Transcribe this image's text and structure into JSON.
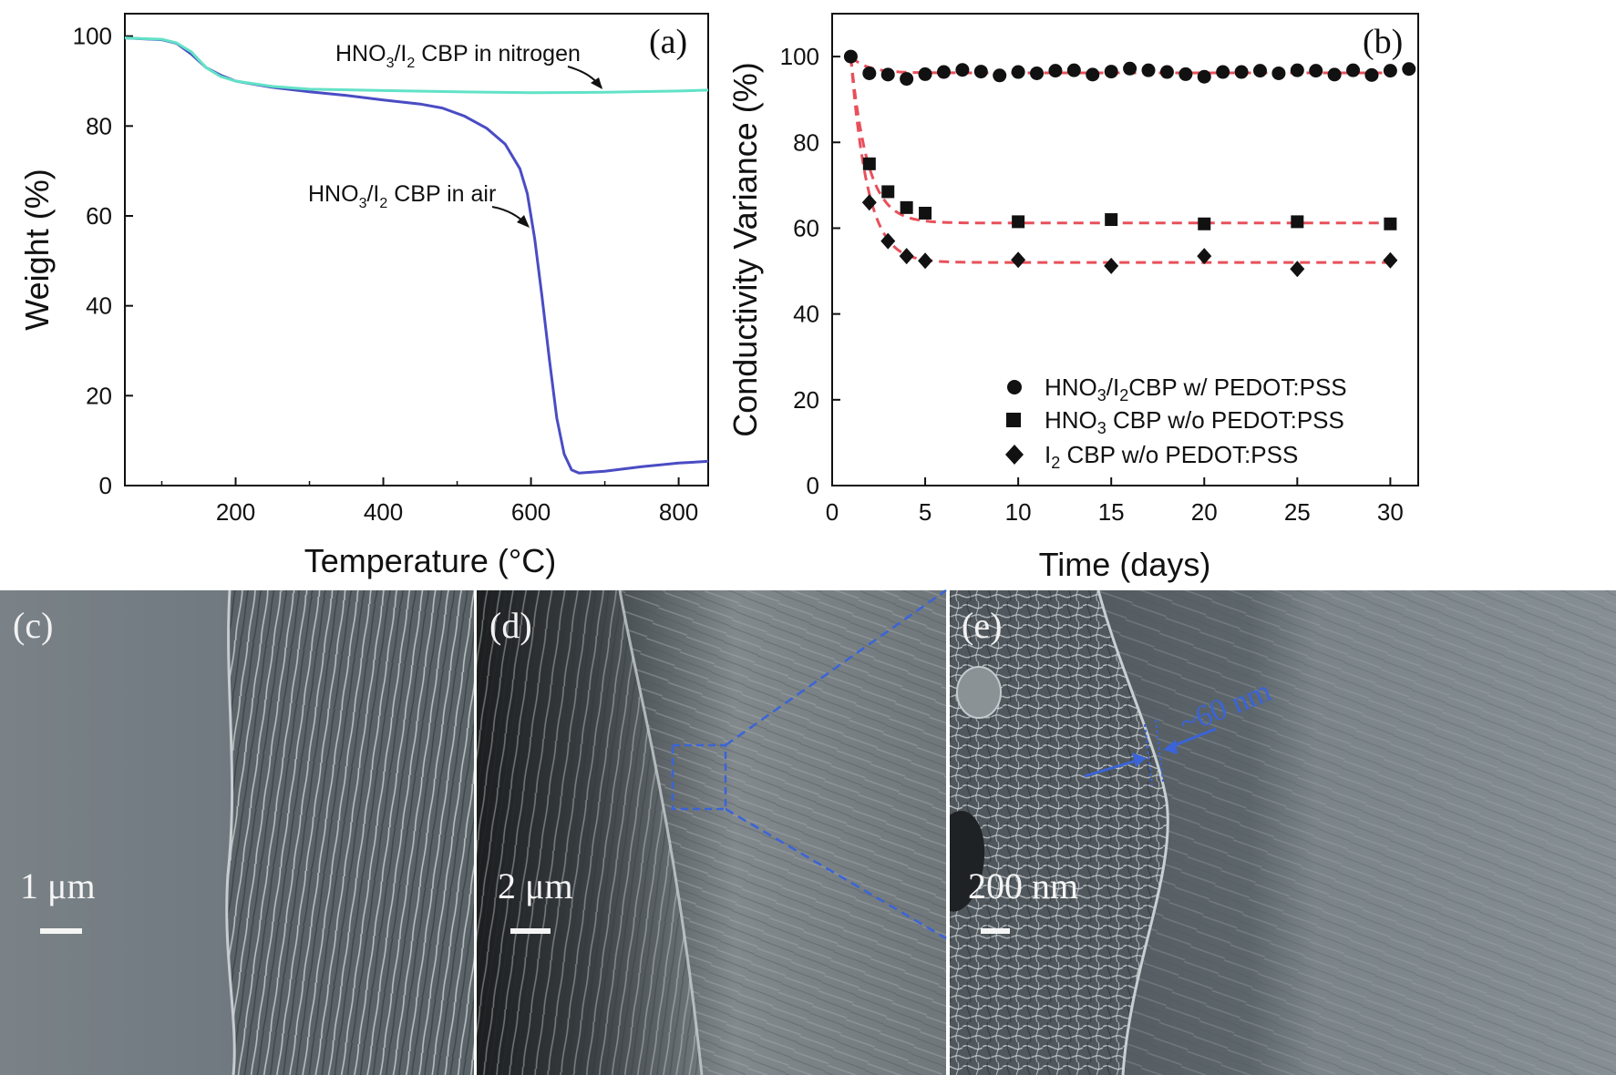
{
  "chart_data": [
    {
      "panel": "(a)",
      "type": "line",
      "xlabel": "Temperature (°C)",
      "ylabel": "Weight (%)",
      "xlim": [
        50,
        840
      ],
      "ylim": [
        0,
        105
      ],
      "xticks": [
        200,
        400,
        600,
        800
      ],
      "yticks": [
        0,
        20,
        40,
        60,
        80,
        100
      ],
      "grid": false,
      "series": [
        {
          "name": "HNO3/I2 CBP in air",
          "color": "#4a4cc4",
          "points": [
            [
              50,
              99.6
            ],
            [
              100,
              99.2
            ],
            [
              120,
              98.4
            ],
            [
              140,
              96.0
            ],
            [
              160,
              93.0
            ],
            [
              180,
              91.3
            ],
            [
              200,
              90.0
            ],
            [
              250,
              88.6
            ],
            [
              300,
              87.6
            ],
            [
              350,
              86.8
            ],
            [
              400,
              85.8
            ],
            [
              450,
              84.9
            ],
            [
              480,
              84.0
            ],
            [
              510,
              82.2
            ],
            [
              540,
              79.5
            ],
            [
              565,
              76.0
            ],
            [
              585,
              70.5
            ],
            [
              595,
              65.0
            ],
            [
              605,
              55.0
            ],
            [
              615,
              42.0
            ],
            [
              625,
              28.0
            ],
            [
              635,
              15.0
            ],
            [
              645,
              7.0
            ],
            [
              655,
              3.5
            ],
            [
              665,
              2.8
            ],
            [
              700,
              3.2
            ],
            [
              750,
              4.2
            ],
            [
              800,
              5.0
            ],
            [
              840,
              5.4
            ]
          ]
        },
        {
          "name": "HNO3/I2 CBP in nitrogen",
          "color": "#62e2c6",
          "points": [
            [
              50,
              99.6
            ],
            [
              100,
              99.3
            ],
            [
              120,
              98.5
            ],
            [
              140,
              96.5
            ],
            [
              160,
              93.0
            ],
            [
              180,
              91.0
            ],
            [
              200,
              90.0
            ],
            [
              250,
              88.8
            ],
            [
              300,
              88.2
            ],
            [
              400,
              87.9
            ],
            [
              500,
              87.6
            ],
            [
              600,
              87.4
            ],
            [
              700,
              87.5
            ],
            [
              800,
              87.8
            ],
            [
              840,
              88.0
            ]
          ]
        }
      ],
      "annotations": [
        {
          "text": "HNO3/I2 CBP in nitrogen",
          "series": "HNO3/I2 CBP in nitrogen"
        },
        {
          "text": "HNO3/I2 CBP in air",
          "series": "HNO3/I2 CBP in air"
        }
      ]
    },
    {
      "panel": "(b)",
      "type": "scatter",
      "xlabel": "Time (days)",
      "ylabel": "Conductivity Variance (%)",
      "xlim": [
        0,
        31.5
      ],
      "ylim": [
        0,
        110
      ],
      "xticks": [
        0,
        5,
        10,
        15,
        20,
        25,
        30
      ],
      "yticks": [
        0,
        20,
        40,
        60,
        80,
        100
      ],
      "legend_position": "bottom-right",
      "fit_color": "#e8505b",
      "series": [
        {
          "name": "HNO3/I2CBP w/ PEDOT:PSS",
          "marker": "circle",
          "x": [
            1,
            2,
            3,
            4,
            5,
            6,
            7,
            8,
            9,
            10,
            11,
            12,
            13,
            14,
            15,
            16,
            17,
            18,
            19,
            20,
            21,
            22,
            23,
            24,
            25,
            26,
            27,
            28,
            29,
            30,
            31
          ],
          "y": [
            100,
            96.1,
            95.8,
            94.8,
            95.9,
            96.4,
            96.9,
            96.5,
            95.6,
            96.4,
            96.1,
            96.7,
            96.8,
            95.8,
            96.5,
            97.2,
            96.8,
            96.4,
            95.9,
            95.3,
            96.4,
            96.4,
            96.7,
            96.1,
            96.8,
            96.7,
            95.8,
            96.8,
            95.7,
            96.7,
            97.1
          ],
          "fit": {
            "plateau": 96.2
          }
        },
        {
          "name": "HNO3 CBP w/o PEDOT:PSS",
          "marker": "square",
          "x": [
            2,
            3,
            4,
            5,
            10,
            15,
            20,
            25,
            30
          ],
          "y": [
            75,
            68.5,
            64.8,
            63.5,
            61.5,
            62,
            61,
            61.5,
            61
          ],
          "fit": {
            "plateau": 61.2
          }
        },
        {
          "name": "I2 CBP w/o PEDOT:PSS",
          "marker": "diamond",
          "x": [
            2,
            3,
            4,
            5,
            10,
            15,
            20,
            25,
            30
          ],
          "y": [
            66,
            57,
            53.5,
            52.4,
            52.6,
            51.2,
            53.5,
            50.5,
            52.5
          ],
          "fit": {
            "plateau": 52.0
          }
        }
      ]
    }
  ],
  "panels": {
    "a_tag": "(a)",
    "b_tag": "(b)",
    "c_tag": "(c)",
    "d_tag": "(d)",
    "e_tag": "(e)"
  },
  "annotations": {
    "nitrogen": {
      "pre": "HNO",
      "sub1": "3",
      "mid": "/I",
      "sub2": "2",
      "post": " CBP in nitrogen"
    },
    "air": {
      "pre": "HNO",
      "sub1": "3",
      "mid": "/I",
      "sub2": "2",
      "post": " CBP in air"
    }
  },
  "legend": [
    {
      "pre": "HNO",
      "sub1": "3",
      "mid": "/I",
      "sub2": "2",
      "post": "CBP w/ PEDOT:PSS"
    },
    {
      "pre": "HNO",
      "sub1": "3",
      "mid": "",
      "sub2": "",
      "post": " CBP w/o PEDOT:PSS"
    },
    {
      "pre": "I",
      "sub1": "2",
      "mid": "",
      "sub2": "",
      "post": " CBP w/o PEDOT:PSS"
    }
  ],
  "sem": {
    "c_scale": "1 μm",
    "d_scale": "2 μm",
    "e_scale": "200 nm",
    "e_measure": "~60 nm",
    "zoom_color": "#3a64d8"
  }
}
